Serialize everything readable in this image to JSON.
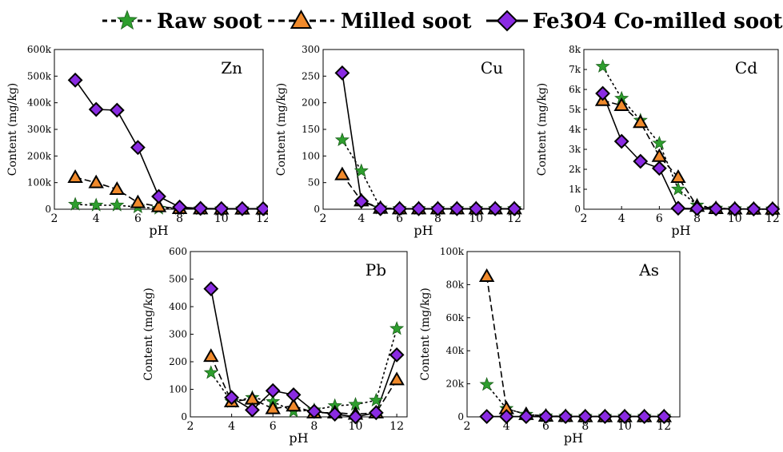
{
  "legend": {
    "items": [
      {
        "label": "Raw soot",
        "marker": "star",
        "color": "#2e9e2e"
      },
      {
        "label": "Milled soot",
        "marker": "triangle",
        "color": "#f08a2c"
      },
      {
        "label": "Fe3O4 Co-milled soot",
        "marker": "diamond",
        "color": "#8a2be2"
      }
    ]
  },
  "chart_data": [
    {
      "type": "line",
      "title": "Zn",
      "xlabel": "pH",
      "ylabel": "Content (mg/kg)",
      "xlim": [
        2,
        12
      ],
      "ylim": [
        0,
        600000
      ],
      "xticks": [
        2,
        4,
        6,
        8,
        10,
        12
      ],
      "yticks": [
        0,
        100000,
        200000,
        300000,
        400000,
        500000,
        600000
      ],
      "ytick_labels": [
        "0",
        "100k",
        "200k",
        "300k",
        "400k",
        "500k",
        "600k"
      ],
      "x": [
        3,
        4,
        5,
        6,
        7,
        8,
        9,
        10,
        11,
        12
      ],
      "series": [
        {
          "name": "Raw soot",
          "values": [
            18000,
            15000,
            15000,
            8000,
            3000,
            2000,
            1000,
            1000,
            1000,
            1000
          ]
        },
        {
          "name": "Milled soot",
          "values": [
            120000,
            100000,
            75000,
            25000,
            10000,
            3000,
            2000,
            1000,
            1000,
            1000
          ]
        },
        {
          "name": "Fe3O4 Co-milled soot",
          "values": [
            485000,
            375000,
            372000,
            232000,
            48000,
            8000,
            3000,
            2000,
            2000,
            2000
          ]
        }
      ]
    },
    {
      "type": "line",
      "title": "Cu",
      "xlabel": "pH",
      "ylabel": "Content (mg/kg)",
      "xlim": [
        2,
        12.5
      ],
      "ylim": [
        0,
        300
      ],
      "xticks": [
        2,
        4,
        6,
        8,
        10,
        12
      ],
      "yticks": [
        0,
        50,
        100,
        150,
        200,
        250,
        300
      ],
      "ytick_labels": [
        "0",
        "50",
        "100",
        "150",
        "200",
        "250",
        "300"
      ],
      "x": [
        3,
        4,
        5,
        6,
        7,
        8,
        9,
        10,
        11,
        12
      ],
      "series": [
        {
          "name": "Raw soot",
          "values": [
            130,
            72,
            2,
            1,
            1,
            1,
            1,
            1,
            1,
            1
          ]
        },
        {
          "name": "Milled soot",
          "values": [
            65,
            16,
            2,
            1,
            1,
            1,
            1,
            1,
            1,
            1
          ]
        },
        {
          "name": "Fe3O4 Co-milled soot",
          "values": [
            256,
            15,
            1,
            1,
            1,
            1,
            1,
            1,
            1,
            1
          ]
        }
      ]
    },
    {
      "type": "line",
      "title": "Cd",
      "xlabel": "pH",
      "ylabel": "Content (mg/kg)",
      "xlim": [
        2,
        12.3
      ],
      "ylim": [
        0,
        8000
      ],
      "xticks": [
        2,
        4,
        6,
        8,
        10,
        12
      ],
      "yticks": [
        0,
        1000,
        2000,
        3000,
        4000,
        5000,
        6000,
        7000,
        8000
      ],
      "ytick_labels": [
        "0",
        "1k",
        "2k",
        "3k",
        "4k",
        "5k",
        "6k",
        "7k",
        "8k"
      ],
      "x": [
        3,
        4,
        5,
        6,
        7,
        8,
        9,
        10,
        11,
        12
      ],
      "series": [
        {
          "name": "Raw soot",
          "values": [
            7150,
            5550,
            4450,
            3300,
            1000,
            200,
            50,
            20,
            10,
            10
          ]
        },
        {
          "name": "Milled soot",
          "values": [
            5450,
            5200,
            4350,
            2650,
            1600,
            150,
            40,
            20,
            10,
            10
          ]
        },
        {
          "name": "Fe3O4 Co-milled soot",
          "values": [
            5800,
            3400,
            2400,
            2050,
            50,
            30,
            20,
            10,
            10,
            10
          ]
        }
      ]
    },
    {
      "type": "line",
      "title": "Pb",
      "xlabel": "pH",
      "ylabel": "Content (mg/kg)",
      "xlim": [
        2,
        12.5
      ],
      "ylim": [
        0,
        600
      ],
      "xticks": [
        2,
        4,
        6,
        8,
        10,
        12
      ],
      "yticks": [
        0,
        100,
        200,
        300,
        400,
        500,
        600
      ],
      "ytick_labels": [
        "0",
        "100",
        "200",
        "300",
        "400",
        "500",
        "600"
      ],
      "x": [
        3,
        4,
        5,
        6,
        7,
        8,
        9,
        10,
        11,
        12
      ],
      "series": [
        {
          "name": "Raw soot",
          "values": [
            160,
            55,
            70,
            55,
            20,
            25,
            40,
            45,
            60,
            320
          ]
        },
        {
          "name": "Milled soot",
          "values": [
            220,
            55,
            65,
            30,
            40,
            15,
            15,
            10,
            15,
            135
          ]
        },
        {
          "name": "Fe3O4 Co-milled soot",
          "values": [
            465,
            70,
            25,
            95,
            80,
            20,
            10,
            0,
            15,
            225
          ]
        }
      ]
    },
    {
      "type": "line",
      "title": "As",
      "xlabel": "pH",
      "ylabel": "Content (mg/kg)",
      "xlim": [
        2,
        12.8
      ],
      "ylim": [
        0,
        100000
      ],
      "xticks": [
        2,
        4,
        6,
        8,
        10,
        12
      ],
      "yticks": [
        0,
        20000,
        40000,
        60000,
        80000,
        100000
      ],
      "ytick_labels": [
        "0",
        "20k",
        "40k",
        "60k",
        "80k",
        "100k"
      ],
      "x": [
        3,
        4,
        5,
        6,
        7,
        8,
        9,
        10,
        11,
        12
      ],
      "series": [
        {
          "name": "Raw soot",
          "values": [
            19500,
            5000,
            1500,
            500,
            300,
            200,
            200,
            200,
            200,
            200
          ]
        },
        {
          "name": "Milled soot",
          "values": [
            85000,
            5000,
            1500,
            500,
            300,
            200,
            200,
            200,
            200,
            200
          ]
        },
        {
          "name": "Fe3O4 Co-milled soot",
          "values": [
            200,
            200,
            200,
            200,
            200,
            200,
            200,
            200,
            200,
            200
          ]
        }
      ]
    }
  ]
}
